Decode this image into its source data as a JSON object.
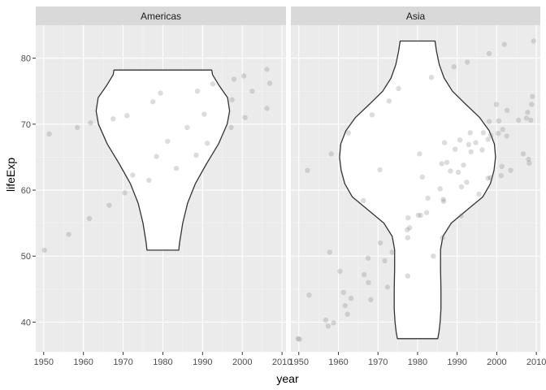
{
  "chart_data": {
    "type": "scatter",
    "overlay": "violin",
    "xlabel": "year",
    "ylabel": "lifeExp",
    "xlim": [
      1948,
      2011
    ],
    "ylim": [
      35.5,
      85
    ],
    "x_ticks": [
      1950,
      1960,
      1970,
      1980,
      1990,
      2000,
      2010
    ],
    "y_ticks": [
      40,
      50,
      60,
      70,
      80
    ],
    "grid": true,
    "point_color": "#808080",
    "panel_bg": "#ebebeb",
    "strip_bg": "#d9d9d9",
    "violin_fill": "#ffffff",
    "violin_stroke": "#333333",
    "panels": [
      {
        "name": "Americas",
        "violin": {
          "center_x": 1980,
          "profile": [
            {
              "y": 50.9,
              "hw": 4
            },
            {
              "y": 52,
              "hw": 4.2
            },
            {
              "y": 55,
              "hw": 5
            },
            {
              "y": 58,
              "hw": 6.2
            },
            {
              "y": 61,
              "hw": 8.2
            },
            {
              "y": 64,
              "hw": 11
            },
            {
              "y": 67,
              "hw": 14
            },
            {
              "y": 70,
              "hw": 16.2
            },
            {
              "y": 72,
              "hw": 16.8
            },
            {
              "y": 74,
              "hw": 16.3
            },
            {
              "y": 76,
              "hw": 14
            },
            {
              "y": 77.5,
              "hw": 12.5
            },
            {
              "y": 78.2,
              "hw": 12.3
            }
          ]
        },
        "points": [
          {
            "x": 1950.2,
            "y": 50.9
          },
          {
            "x": 1951.4,
            "y": 68.5
          },
          {
            "x": 1956.3,
            "y": 53.3
          },
          {
            "x": 1958.5,
            "y": 69.5
          },
          {
            "x": 1961.5,
            "y": 55.7
          },
          {
            "x": 1961.8,
            "y": 70.2
          },
          {
            "x": 1966.5,
            "y": 57.7
          },
          {
            "x": 1967.5,
            "y": 70.8
          },
          {
            "x": 1970.4,
            "y": 59.6
          },
          {
            "x": 1971,
            "y": 71.3
          },
          {
            "x": 1972.4,
            "y": 62.3
          },
          {
            "x": 1976.5,
            "y": 61.5
          },
          {
            "x": 1977.5,
            "y": 73.4
          },
          {
            "x": 1978.4,
            "y": 65.1
          },
          {
            "x": 1979.4,
            "y": 74.7
          },
          {
            "x": 1981.2,
            "y": 67.4
          },
          {
            "x": 1983.4,
            "y": 63.3
          },
          {
            "x": 1986.1,
            "y": 69.5
          },
          {
            "x": 1988.4,
            "y": 65.3
          },
          {
            "x": 1988.7,
            "y": 75
          },
          {
            "x": 1990.4,
            "y": 71.5
          },
          {
            "x": 1991.2,
            "y": 67.1
          },
          {
            "x": 1992.6,
            "y": 76.1
          },
          {
            "x": 1997.2,
            "y": 69.5
          },
          {
            "x": 1997.4,
            "y": 73.7
          },
          {
            "x": 1997.9,
            "y": 76.8
          },
          {
            "x": 2000.7,
            "y": 71
          },
          {
            "x": 2000.4,
            "y": 77.3
          },
          {
            "x": 2002.5,
            "y": 75
          },
          {
            "x": 2006.2,
            "y": 78.3
          },
          {
            "x": 2006.2,
            "y": 72.4
          },
          {
            "x": 2006.9,
            "y": 76.2
          }
        ]
      },
      {
        "name": "Asia",
        "violin": {
          "center_x": 1980,
          "profile": [
            {
              "y": 37.5,
              "hw": 5.1
            },
            {
              "y": 38.5,
              "hw": 5.4
            },
            {
              "y": 40,
              "hw": 5.7
            },
            {
              "y": 42,
              "hw": 5.9
            },
            {
              "y": 45,
              "hw": 5.9
            },
            {
              "y": 48,
              "hw": 5.8
            },
            {
              "y": 51,
              "hw": 5.8
            },
            {
              "y": 53,
              "hw": 6.4
            },
            {
              "y": 55,
              "hw": 8.5
            },
            {
              "y": 57,
              "hw": 12.5
            },
            {
              "y": 59,
              "hw": 16.5
            },
            {
              "y": 61,
              "hw": 18.4
            },
            {
              "y": 63,
              "hw": 19.3
            },
            {
              "y": 65,
              "hw": 19.7
            },
            {
              "y": 67,
              "hw": 19.4
            },
            {
              "y": 69,
              "hw": 18.1
            },
            {
              "y": 71,
              "hw": 15.7
            },
            {
              "y": 73,
              "hw": 12.2
            },
            {
              "y": 75,
              "hw": 8.8
            },
            {
              "y": 77,
              "hw": 6.7
            },
            {
              "y": 79,
              "hw": 5.5
            },
            {
              "y": 81,
              "hw": 4.8
            },
            {
              "y": 82.6,
              "hw": 4.4
            }
          ]
        },
        "points": [
          {
            "x": 1949.8,
            "y": 37.5
          },
          {
            "x": 1950.2,
            "y": 37.4
          },
          {
            "x": 1952.2,
            "y": 63
          },
          {
            "x": 1952.6,
            "y": 44.1
          },
          {
            "x": 1956.8,
            "y": 40.3
          },
          {
            "x": 1957.4,
            "y": 39.4
          },
          {
            "x": 1957.8,
            "y": 50.6
          },
          {
            "x": 1958.2,
            "y": 65.5
          },
          {
            "x": 1958.8,
            "y": 39.9
          },
          {
            "x": 1960.4,
            "y": 47.7
          },
          {
            "x": 1961.3,
            "y": 44.5
          },
          {
            "x": 1961.7,
            "y": 42.5
          },
          {
            "x": 1962.3,
            "y": 41.2
          },
          {
            "x": 1962.5,
            "y": 68.7
          },
          {
            "x": 1963.2,
            "y": 43.6
          },
          {
            "x": 1966.3,
            "y": 58.4
          },
          {
            "x": 1966.5,
            "y": 47.2
          },
          {
            "x": 1967.5,
            "y": 49.7
          },
          {
            "x": 1967.6,
            "y": 46
          },
          {
            "x": 1968.2,
            "y": 43.4
          },
          {
            "x": 1968.5,
            "y": 71.4
          },
          {
            "x": 1970.5,
            "y": 63.1
          },
          {
            "x": 1970.6,
            "y": 52
          },
          {
            "x": 1971.7,
            "y": 49.3
          },
          {
            "x": 1972.4,
            "y": 45.3
          },
          {
            "x": 1972.8,
            "y": 73.5
          },
          {
            "x": 1973.6,
            "y": 50.6
          },
          {
            "x": 1975.2,
            "y": 75.4
          },
          {
            "x": 1977.6,
            "y": 55.8
          },
          {
            "x": 1977.4,
            "y": 54
          },
          {
            "x": 1978,
            "y": 54.3
          },
          {
            "x": 1977.5,
            "y": 52.8
          },
          {
            "x": 1977.5,
            "y": 47
          },
          {
            "x": 1980.2,
            "y": 56.2
          },
          {
            "x": 1980.5,
            "y": 65.5
          },
          {
            "x": 1980.8,
            "y": 56.2
          },
          {
            "x": 1981.2,
            "y": 62
          },
          {
            "x": 1982.3,
            "y": 56.6
          },
          {
            "x": 1982.6,
            "y": 58.8
          },
          {
            "x": 1983.5,
            "y": 77.1
          },
          {
            "x": 1984,
            "y": 50
          },
          {
            "x": 1985.7,
            "y": 60.2
          },
          {
            "x": 1986.1,
            "y": 64
          },
          {
            "x": 1986.3,
            "y": 52.8
          },
          {
            "x": 1986.5,
            "y": 58.6
          },
          {
            "x": 1986.6,
            "y": 58.3
          },
          {
            "x": 1986.8,
            "y": 67.2
          },
          {
            "x": 1987.4,
            "y": 64.2
          },
          {
            "x": 1988.3,
            "y": 62.9
          },
          {
            "x": 1989.2,
            "y": 78.7
          },
          {
            "x": 1989.5,
            "y": 66.2
          },
          {
            "x": 1990.3,
            "y": 62.7
          },
          {
            "x": 1990.7,
            "y": 67.6
          },
          {
            "x": 1991,
            "y": 56.1
          },
          {
            "x": 1991.1,
            "y": 60.5
          },
          {
            "x": 1991.6,
            "y": 63.8
          },
          {
            "x": 1992.4,
            "y": 61.2
          },
          {
            "x": 1992.6,
            "y": 79.4
          },
          {
            "x": 1992.9,
            "y": 66.9
          },
          {
            "x": 1993.3,
            "y": 68.7
          },
          {
            "x": 1993.5,
            "y": 65.8
          },
          {
            "x": 1994.7,
            "y": 67.2
          },
          {
            "x": 1995.5,
            "y": 59.4
          },
          {
            "x": 1996.3,
            "y": 66.1
          },
          {
            "x": 1996.6,
            "y": 68.7
          },
          {
            "x": 1997.8,
            "y": 61.8
          },
          {
            "x": 1997.8,
            "y": 67.7
          },
          {
            "x": 1998.1,
            "y": 70.4
          },
          {
            "x": 1998.1,
            "y": 80.7
          },
          {
            "x": 1998.4,
            "y": 61.9
          },
          {
            "x": 1998.5,
            "y": 68.3
          },
          {
            "x": 1999.9,
            "y": 73
          },
          {
            "x": 2000.4,
            "y": 68.6
          },
          {
            "x": 2000.5,
            "y": 70.5
          },
          {
            "x": 2001.1,
            "y": 62.2
          },
          {
            "x": 2001.3,
            "y": 63.6
          },
          {
            "x": 2001.5,
            "y": 69.2
          },
          {
            "x": 2001.9,
            "y": 82.1
          },
          {
            "x": 2002.5,
            "y": 68.2
          },
          {
            "x": 2003.5,
            "y": 63
          },
          {
            "x": 2002.6,
            "y": 72.1
          },
          {
            "x": 2005.5,
            "y": 70.6
          },
          {
            "x": 2006.7,
            "y": 65.5
          },
          {
            "x": 2008,
            "y": 64.7
          },
          {
            "x": 2007.8,
            "y": 71.8
          },
          {
            "x": 2007.5,
            "y": 70.9
          },
          {
            "x": 2008.2,
            "y": 64.1
          },
          {
            "x": 2008.6,
            "y": 70.6
          },
          {
            "x": 2008.8,
            "y": 73
          },
          {
            "x": 2009,
            "y": 74.2
          },
          {
            "x": 2009.3,
            "y": 82.6
          }
        ]
      }
    ]
  }
}
